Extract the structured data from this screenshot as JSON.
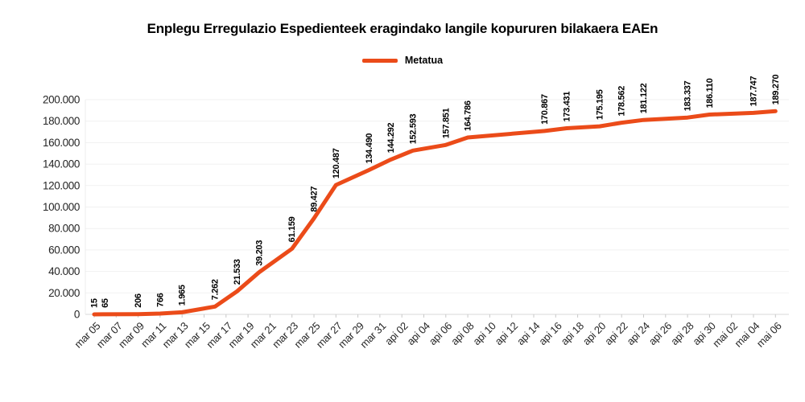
{
  "page": {
    "background": "#ffffff"
  },
  "chart_data": {
    "type": "line",
    "title": "Enplegu Erregulazio Espedienteek eragindako langile kopururen bilakaera EAEn",
    "legend": {
      "position": "top-center",
      "items": [
        "Metatua"
      ]
    },
    "grid": "horizontal-only",
    "y_axis": {
      "min": 0,
      "max": 200000,
      "step": 20000,
      "tick_labels": [
        "0",
        "20.000",
        "40.000",
        "60.000",
        "80.000",
        "100.000",
        "120.000",
        "140.000",
        "160.000",
        "180.000",
        "200.000"
      ]
    },
    "x_axis": {
      "tick_labels": [
        "mar 05",
        "mar 07",
        "mar 09",
        "mar 11",
        "mar 13",
        "mar 15",
        "mar 17",
        "mar 19",
        "mar 21",
        "mar 23",
        "mar 25",
        "mar 27",
        "mar 29",
        "mar 31",
        "api 02",
        "api 04",
        "api 06",
        "api 08",
        "api 10",
        "api 12",
        "api 14",
        "api 16",
        "api 18",
        "api 20",
        "api 22",
        "api 24",
        "api 26",
        "api 28",
        "api 30",
        "mai 02",
        "mai 04",
        "mai 06"
      ],
      "tick_days": [
        0,
        2,
        4,
        6,
        8,
        10,
        12,
        14,
        16,
        18,
        20,
        22,
        24,
        26,
        28,
        30,
        32,
        34,
        36,
        38,
        40,
        42,
        44,
        46,
        48,
        50,
        52,
        54,
        56,
        58,
        60,
        62
      ]
    },
    "series": [
      {
        "name": "Metatua",
        "color": "#eb4b19",
        "points": [
          {
            "date": "mar 05",
            "day": 0,
            "value": 15,
            "label": "15"
          },
          {
            "date": "mar 06",
            "day": 1,
            "value": 65,
            "label": "65"
          },
          {
            "date": "mar 09",
            "day": 4,
            "value": 206,
            "label": "206"
          },
          {
            "date": "mar 11",
            "day": 6,
            "value": 766,
            "label": "766"
          },
          {
            "date": "mar 13",
            "day": 8,
            "value": 1965,
            "label": "1.965"
          },
          {
            "date": "mar 16",
            "day": 11,
            "value": 7262,
            "label": "7.262"
          },
          {
            "date": "mar 18",
            "day": 13,
            "value": 21533,
            "label": "21.533"
          },
          {
            "date": "mar 20",
            "day": 15,
            "value": 39203,
            "label": "39.203"
          },
          {
            "date": "mar 23",
            "day": 18,
            "value": 61159,
            "label": "61.159"
          },
          {
            "date": "mar 25",
            "day": 20,
            "value": 89427,
            "label": "89.427"
          },
          {
            "date": "mar 27",
            "day": 22,
            "value": 120487,
            "label": "120.487"
          },
          {
            "date": "mar 30",
            "day": 25,
            "value": 134490,
            "label": "134.490"
          },
          {
            "date": "api 01",
            "day": 27,
            "value": 144292,
            "label": "144.292"
          },
          {
            "date": "api 03",
            "day": 29,
            "value": 152593,
            "label": "152.593"
          },
          {
            "date": "api 06",
            "day": 32,
            "value": 157851,
            "label": "157.851"
          },
          {
            "date": "api 08",
            "day": 34,
            "value": 164786,
            "label": "164.786"
          },
          {
            "date": "api 15",
            "day": 41,
            "value": 170867,
            "label": "170.867"
          },
          {
            "date": "api 17",
            "day": 43,
            "value": 173431,
            "label": "173.431"
          },
          {
            "date": "api 20",
            "day": 46,
            "value": 175195,
            "label": "175.195"
          },
          {
            "date": "api 22",
            "day": 48,
            "value": 178562,
            "label": "178.562"
          },
          {
            "date": "api 24",
            "day": 50,
            "value": 181122,
            "label": "181.122"
          },
          {
            "date": "api 28",
            "day": 54,
            "value": 183337,
            "label": "183.337"
          },
          {
            "date": "api 30",
            "day": 56,
            "value": 186110,
            "label": "186.110"
          },
          {
            "date": "mai 04",
            "day": 60,
            "value": 187747,
            "label": "187.747"
          },
          {
            "date": "mai 06",
            "day": 62,
            "value": 189270,
            "label": "189.270"
          }
        ]
      }
    ]
  }
}
